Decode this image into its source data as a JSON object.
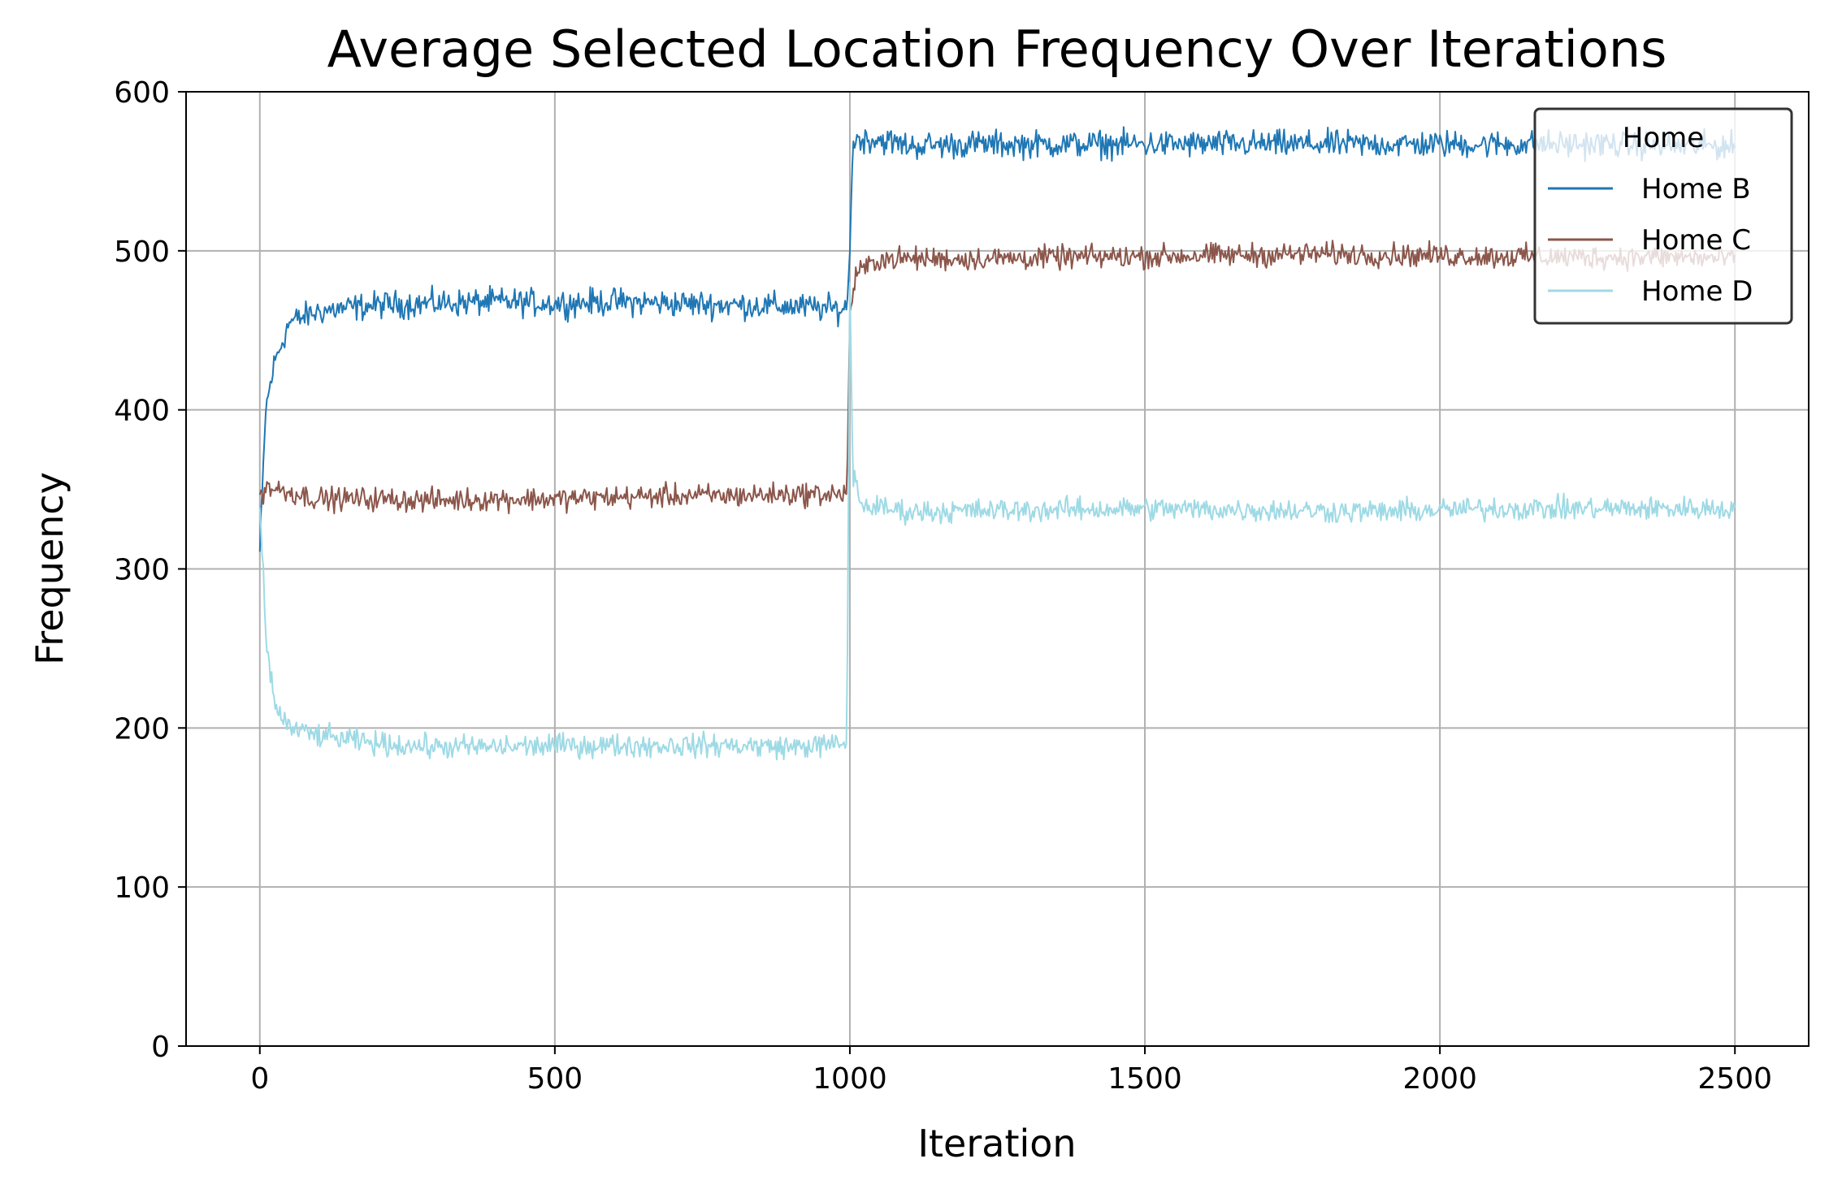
{
  "chart_data": {
    "type": "line",
    "title": "Average Selected Location Frequency Over Iterations",
    "xlabel": "Iteration",
    "ylabel": "Frequency",
    "xlim": [
      -125,
      2625
    ],
    "ylim": [
      0,
      600
    ],
    "x_ticks": [
      0,
      500,
      1000,
      1500,
      2000,
      2500
    ],
    "y_ticks": [
      0,
      100,
      200,
      300,
      400,
      500,
      600
    ],
    "grid": true,
    "legend": {
      "title": "Home",
      "placement": "top-right"
    },
    "series": [
      {
        "name": "Home B",
        "color": "#1f77b4",
        "points": [
          [
            0,
            310
          ],
          [
            10,
            400
          ],
          [
            25,
            430
          ],
          [
            50,
            455
          ],
          [
            100,
            462
          ],
          [
            200,
            466
          ],
          [
            300,
            467
          ],
          [
            400,
            468
          ],
          [
            500,
            467
          ],
          [
            600,
            468
          ],
          [
            700,
            467
          ],
          [
            800,
            466
          ],
          [
            900,
            465
          ],
          [
            995,
            463
          ],
          [
            1000,
            500
          ],
          [
            1005,
            570
          ],
          [
            1050,
            570
          ],
          [
            1100,
            566
          ],
          [
            1200,
            567
          ],
          [
            1300,
            567
          ],
          [
            1400,
            567
          ],
          [
            1500,
            567
          ],
          [
            1600,
            567
          ],
          [
            1700,
            567
          ],
          [
            1800,
            567
          ],
          [
            1900,
            567
          ],
          [
            2000,
            567
          ],
          [
            2100,
            567
          ],
          [
            2200,
            567
          ],
          [
            2300,
            567
          ],
          [
            2400,
            566
          ],
          [
            2500,
            566
          ]
        ],
        "noise": 7
      },
      {
        "name": "Home C",
        "color": "#8c564b",
        "points": [
          [
            0,
            345
          ],
          [
            10,
            352
          ],
          [
            30,
            350
          ],
          [
            100,
            344
          ],
          [
            200,
            344
          ],
          [
            300,
            343
          ],
          [
            400,
            344
          ],
          [
            500,
            344
          ],
          [
            600,
            345
          ],
          [
            700,
            346
          ],
          [
            800,
            346
          ],
          [
            900,
            347
          ],
          [
            995,
            347
          ],
          [
            1000,
            460
          ],
          [
            1010,
            485
          ],
          [
            1050,
            495
          ],
          [
            1200,
            495
          ],
          [
            1400,
            496
          ],
          [
            1600,
            497
          ],
          [
            1800,
            498
          ],
          [
            2000,
            497
          ],
          [
            2200,
            496
          ],
          [
            2400,
            496
          ],
          [
            2500,
            495
          ]
        ],
        "noise": 6
      },
      {
        "name": "Home D",
        "color": "#9edae5",
        "points": [
          [
            0,
            340
          ],
          [
            5,
            300
          ],
          [
            12,
            250
          ],
          [
            25,
            215
          ],
          [
            50,
            200
          ],
          [
            100,
            195
          ],
          [
            200,
            190
          ],
          [
            300,
            188
          ],
          [
            400,
            188
          ],
          [
            500,
            189
          ],
          [
            600,
            189
          ],
          [
            700,
            189
          ],
          [
            800,
            189
          ],
          [
            900,
            188
          ],
          [
            995,
            190
          ],
          [
            1000,
            480
          ],
          [
            1005,
            360
          ],
          [
            1020,
            340
          ],
          [
            1100,
            336
          ],
          [
            1300,
            337
          ],
          [
            1500,
            338
          ],
          [
            1700,
            337
          ],
          [
            1900,
            336
          ],
          [
            2100,
            338
          ],
          [
            2300,
            338
          ],
          [
            2500,
            338
          ]
        ],
        "noise": 6
      }
    ]
  }
}
